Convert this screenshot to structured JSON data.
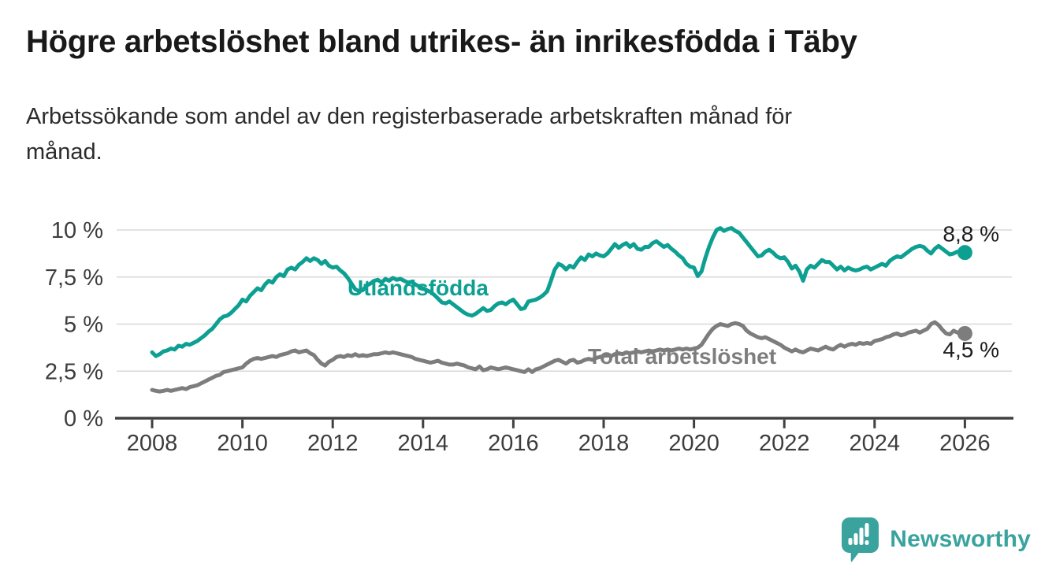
{
  "header": {
    "title": "Högre arbetslöshet bland utrikes- än inrikesfödda i Täby",
    "subtitle_lines": [
      "Arbetssökande som andel av den registerbaserade arbetskraften månad för",
      "månad."
    ]
  },
  "chart_data": {
    "type": "line",
    "title": "Högre arbetslöshet bland utrikes- än inrikesfödda i Täby",
    "subtitle": "Arbetssökande som andel av den registerbaserade arbetskraften månad för månad.",
    "x_start_year": 2008,
    "points_per_year": 12,
    "xlim": [
      2007.8,
      2027.0
    ],
    "ylim": [
      0,
      10.5
    ],
    "grid": true,
    "y_ticks": [
      {
        "value": 10,
        "label": "10 %"
      },
      {
        "value": 7.5,
        "label": "7,5 %"
      },
      {
        "value": 5,
        "label": "5 %"
      },
      {
        "value": 2.5,
        "label": "2,5 %"
      },
      {
        "value": 0,
        "label": "0 %"
      }
    ],
    "x_ticks": [
      {
        "value": 2008,
        "label": "2008"
      },
      {
        "value": 2010,
        "label": "2010"
      },
      {
        "value": 2012,
        "label": "2012"
      },
      {
        "value": 2014,
        "label": "2014"
      },
      {
        "value": 2016,
        "label": "2016"
      },
      {
        "value": 2018,
        "label": "2018"
      },
      {
        "value": 2020,
        "label": "2020"
      },
      {
        "value": 2022,
        "label": "2022"
      },
      {
        "value": 2024,
        "label": "2024"
      },
      {
        "value": 2026,
        "label": "2026"
      }
    ],
    "series": [
      {
        "name": "Utlandsfödda",
        "color": "#0da092",
        "end_label": "8,8 %",
        "end_value": 8.8,
        "values": [
          3.5,
          3.3,
          3.4,
          3.55,
          3.6,
          3.7,
          3.65,
          3.85,
          3.8,
          3.95,
          3.9,
          4.0,
          4.1,
          4.25,
          4.4,
          4.6,
          4.75,
          5.0,
          5.25,
          5.4,
          5.45,
          5.6,
          5.8,
          6.0,
          6.3,
          6.2,
          6.5,
          6.7,
          6.9,
          6.8,
          7.1,
          7.3,
          7.2,
          7.5,
          7.65,
          7.55,
          7.9,
          8.0,
          7.9,
          8.15,
          8.3,
          8.5,
          8.35,
          8.5,
          8.4,
          8.2,
          8.35,
          8.1,
          8.0,
          8.05,
          7.85,
          7.7,
          7.45,
          7.15,
          6.85,
          6.75,
          6.8,
          7.05,
          7.15,
          7.3,
          7.35,
          7.2,
          7.4,
          7.3,
          7.45,
          7.35,
          7.4,
          7.3,
          7.2,
          7.25,
          7.1,
          7.0,
          6.9,
          6.8,
          6.7,
          6.55,
          6.35,
          6.15,
          6.1,
          6.2,
          6.05,
          5.9,
          5.75,
          5.6,
          5.5,
          5.45,
          5.55,
          5.7,
          5.85,
          5.7,
          5.75,
          5.95,
          6.1,
          6.15,
          6.05,
          6.2,
          6.3,
          6.05,
          5.8,
          5.85,
          6.2,
          6.25,
          6.3,
          6.4,
          6.55,
          6.75,
          7.3,
          7.9,
          8.2,
          8.1,
          7.9,
          8.1,
          8.0,
          8.3,
          8.55,
          8.4,
          8.7,
          8.6,
          8.75,
          8.65,
          8.6,
          8.75,
          9.0,
          9.25,
          9.05,
          9.2,
          9.3,
          9.1,
          9.25,
          9.0,
          8.95,
          9.1,
          9.1,
          9.3,
          9.4,
          9.25,
          9.1,
          9.2,
          9.0,
          8.85,
          8.65,
          8.5,
          8.2,
          8.05,
          8.0,
          7.55,
          7.8,
          8.5,
          9.1,
          9.6,
          10.0,
          10.1,
          9.95,
          10.05,
          10.1,
          9.95,
          9.85,
          9.6,
          9.35,
          9.1,
          8.85,
          8.6,
          8.65,
          8.85,
          8.95,
          8.8,
          8.6,
          8.5,
          8.55,
          8.3,
          7.95,
          8.1,
          7.8,
          7.3,
          7.9,
          8.1,
          8.0,
          8.2,
          8.4,
          8.3,
          8.3,
          8.1,
          7.9,
          8.05,
          7.85,
          8.0,
          7.9,
          7.85,
          7.9,
          8.0,
          8.05,
          7.9,
          8.0,
          8.1,
          8.2,
          8.1,
          8.35,
          8.5,
          8.6,
          8.55,
          8.7,
          8.85,
          9.0,
          9.1,
          9.15,
          9.1,
          8.9,
          8.75,
          9.0,
          9.15,
          9.0,
          8.85,
          8.7,
          8.75,
          8.85,
          8.75,
          8.8
        ]
      },
      {
        "name": "Total arbetslöshet",
        "color": "#7d7d7d",
        "end_label": "4,5 %",
        "end_value": 4.5,
        "values": [
          1.5,
          1.45,
          1.42,
          1.45,
          1.5,
          1.45,
          1.5,
          1.55,
          1.6,
          1.55,
          1.65,
          1.7,
          1.75,
          1.85,
          1.95,
          2.05,
          2.15,
          2.25,
          2.3,
          2.45,
          2.5,
          2.55,
          2.6,
          2.65,
          2.7,
          2.9,
          3.05,
          3.15,
          3.2,
          3.15,
          3.2,
          3.25,
          3.3,
          3.25,
          3.35,
          3.4,
          3.45,
          3.55,
          3.6,
          3.5,
          3.55,
          3.6,
          3.45,
          3.35,
          3.1,
          2.9,
          2.8,
          3.0,
          3.1,
          3.25,
          3.3,
          3.25,
          3.35,
          3.3,
          3.4,
          3.3,
          3.35,
          3.3,
          3.35,
          3.4,
          3.4,
          3.45,
          3.5,
          3.45,
          3.5,
          3.45,
          3.4,
          3.35,
          3.3,
          3.25,
          3.15,
          3.1,
          3.05,
          3.0,
          2.95,
          3.0,
          3.05,
          2.95,
          2.9,
          2.85,
          2.85,
          2.9,
          2.85,
          2.8,
          2.7,
          2.65,
          2.6,
          2.75,
          2.55,
          2.6,
          2.7,
          2.65,
          2.6,
          2.65,
          2.7,
          2.65,
          2.6,
          2.55,
          2.5,
          2.45,
          2.6,
          2.45,
          2.6,
          2.65,
          2.75,
          2.85,
          2.95,
          3.05,
          3.1,
          3.0,
          2.9,
          3.05,
          3.1,
          2.95,
          3.0,
          3.1,
          3.15,
          3.1,
          3.2,
          3.25,
          3.3,
          3.35,
          3.3,
          3.4,
          3.45,
          3.4,
          3.5,
          3.45,
          3.5,
          3.55,
          3.5,
          3.55,
          3.6,
          3.55,
          3.6,
          3.65,
          3.6,
          3.65,
          3.6,
          3.65,
          3.7,
          3.65,
          3.7,
          3.65,
          3.7,
          3.75,
          3.9,
          4.2,
          4.5,
          4.75,
          4.9,
          5.0,
          4.95,
          4.9,
          5.0,
          5.05,
          5.0,
          4.9,
          4.65,
          4.5,
          4.4,
          4.3,
          4.25,
          4.3,
          4.2,
          4.1,
          4.0,
          3.9,
          3.75,
          3.65,
          3.55,
          3.65,
          3.55,
          3.5,
          3.6,
          3.7,
          3.65,
          3.6,
          3.7,
          3.8,
          3.7,
          3.65,
          3.8,
          3.9,
          3.8,
          3.9,
          3.95,
          3.9,
          4.0,
          3.95,
          4.0,
          3.95,
          4.1,
          4.15,
          4.2,
          4.3,
          4.35,
          4.45,
          4.5,
          4.4,
          4.45,
          4.55,
          4.6,
          4.65,
          4.55,
          4.65,
          4.75,
          5.0,
          5.1,
          4.95,
          4.7,
          4.5,
          4.45,
          4.65,
          4.55,
          4.6,
          4.5
        ]
      }
    ],
    "legend_position": "inline-labels"
  },
  "colors": {
    "teal": "#0da092",
    "gray": "#7d7d7d",
    "axis": "#404040",
    "gridline": "#d8d8d8",
    "tick_text": "#3d3d3d",
    "end_label_text": "#1c1c1c",
    "logo_teal": "#3aa39d"
  },
  "logo": {
    "text": "Newsworthy",
    "icon": "newsworthy-bubble-bar-chart-icon"
  }
}
